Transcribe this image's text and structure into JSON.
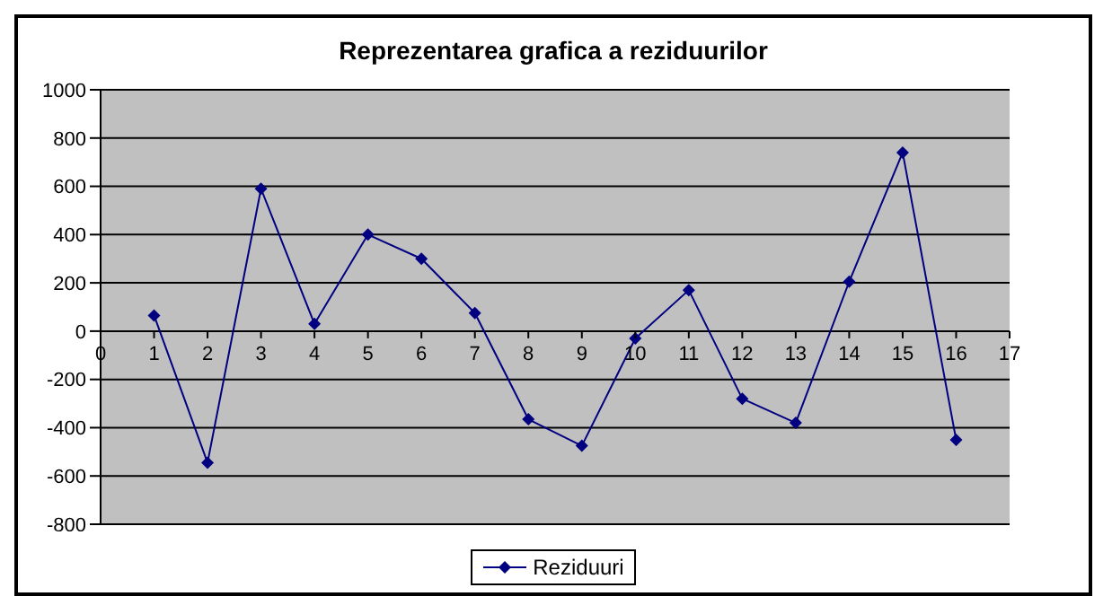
{
  "chart_data": {
    "type": "line",
    "title": "Reprezentarea grafica a reziduurilor",
    "x": [
      1,
      2,
      3,
      4,
      5,
      6,
      7,
      8,
      9,
      10,
      11,
      12,
      13,
      14,
      15,
      16
    ],
    "series": [
      {
        "name": "Reziduuri",
        "color": "#000080",
        "values": [
          65,
          -545,
          590,
          30,
          400,
          300,
          75,
          -365,
          -475,
          -30,
          170,
          -280,
          -380,
          205,
          740,
          -450
        ]
      }
    ],
    "xlim": [
      0,
      17
    ],
    "xticks": [
      0,
      1,
      2,
      3,
      4,
      5,
      6,
      7,
      8,
      9,
      10,
      11,
      12,
      13,
      14,
      15,
      16,
      17
    ],
    "ylim": [
      -800,
      1000
    ],
    "yticks": [
      -800,
      -600,
      -400,
      -200,
      0,
      200,
      400,
      600,
      800,
      1000
    ],
    "grid": "y",
    "legend": "bottom",
    "marker": "diamond",
    "line_style": "solid"
  }
}
